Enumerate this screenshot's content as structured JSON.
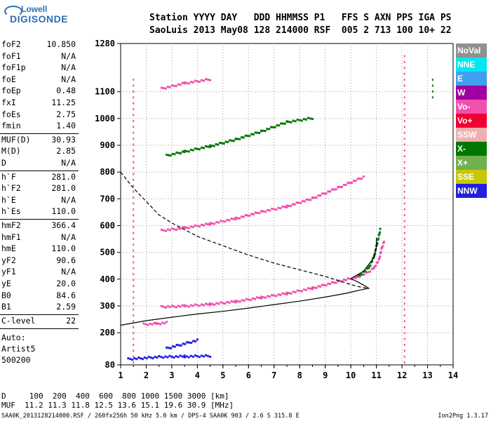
{
  "logo": {
    "top": "Lowell",
    "bottom": "DIGISONDE"
  },
  "header": {
    "line1": "Station YYYY DAY   DDD HHMMSS P1   FFS S AXN PPS IGA PS",
    "line2": "SaoLuis 2013 May08 128 214000 RSF  005 2 713 100 10+ 22"
  },
  "params": [
    {
      "label": "foF2",
      "value": "10.850"
    },
    {
      "label": "foF1",
      "value": "N/A"
    },
    {
      "label": "foF1p",
      "value": "N/A"
    },
    {
      "label": "foE",
      "value": "N/A"
    },
    {
      "label": "foEp",
      "value": "0.48"
    },
    {
      "label": "fxI",
      "value": "11.25"
    },
    {
      "label": "foEs",
      "value": "2.75"
    },
    {
      "label": "fmin",
      "value": "1.40"
    },
    {
      "label": "MUF(D)",
      "value": "30.93"
    },
    {
      "label": "M(D)",
      "value": "2.85"
    },
    {
      "label": "D",
      "value": "N/A"
    },
    {
      "label": "h`F",
      "value": "281.0"
    },
    {
      "label": "h`F2",
      "value": "281.0"
    },
    {
      "label": "h`E",
      "value": "N/A"
    },
    {
      "label": "h`Es",
      "value": "110.0"
    },
    {
      "label": "hmF2",
      "value": "366.4"
    },
    {
      "label": "hmF1",
      "value": "N/A"
    },
    {
      "label": "hmE",
      "value": "110.0"
    },
    {
      "label": "yF2",
      "value": "90.6"
    },
    {
      "label": "yF1",
      "value": "N/A"
    },
    {
      "label": "yE",
      "value": "20.0"
    },
    {
      "label": "B0",
      "value": "84.6"
    },
    {
      "label": "B1",
      "value": "2.59"
    },
    {
      "label": "C-level",
      "value": "22"
    }
  ],
  "auto": [
    "Auto:",
    "Artist5",
    "500200"
  ],
  "legend": [
    {
      "label": "NoVal",
      "color": "#909090"
    },
    {
      "label": "NNE",
      "color": "#00e8f0"
    },
    {
      "label": "E",
      "color": "#3ea0f0"
    },
    {
      "label": "W",
      "color": "#a000a0"
    },
    {
      "label": "Vo-",
      "color": "#f050b0"
    },
    {
      "label": "Vo+",
      "color": "#f00030"
    },
    {
      "label": "SSW",
      "color": "#f0b0b0"
    },
    {
      "label": "X-",
      "color": "#007800"
    },
    {
      "label": "X+",
      "color": "#70b050"
    },
    {
      "label": "SSE",
      "color": "#c8c800"
    },
    {
      "label": "NNW",
      "color": "#2020e0"
    }
  ],
  "footer": {
    "d_line": "D     100  200  400  600  800 1000 1500 3000 [km]",
    "muf_line": "MUF  11.2 11.3 11.8 12.5 13.6 15.1 19.6 30.9 [MHz]",
    "file_line": "SAA0K_2013128214000.RSF / 260fx256h 50 kHz 5.0 km / DPS-4 SAA0K 903 / 2.6 S 315.8 E",
    "version": "Ion2Png 1.3.17"
  },
  "chart_data": {
    "type": "scatter",
    "xlim": [
      1,
      14
    ],
    "ylim": [
      80,
      1280
    ],
    "x_ticks": [
      1,
      2,
      3,
      4,
      5,
      6,
      7,
      8,
      9,
      10,
      11,
      12,
      13,
      14
    ],
    "y_ticks": [
      80,
      200,
      300,
      400,
      500,
      600,
      700,
      800,
      900,
      1000,
      1100,
      1280
    ],
    "grid": true,
    "series": [
      {
        "color": "#f050b0",
        "kind": "trace",
        "points": [
          [
            2.6,
            295
          ],
          [
            3.5,
            298
          ],
          [
            4.5,
            305
          ],
          [
            5.5,
            315
          ],
          [
            6.5,
            330
          ],
          [
            7.5,
            345
          ],
          [
            8.5,
            365
          ],
          [
            9.5,
            390
          ],
          [
            10.2,
            405
          ]
        ]
      },
      {
        "color": "#f050b0",
        "kind": "trace",
        "points": [
          [
            10.2,
            405
          ],
          [
            10.6,
            420
          ],
          [
            10.9,
            440
          ],
          [
            11.1,
            470
          ],
          [
            11.2,
            510
          ],
          [
            11.3,
            540
          ]
        ]
      },
      {
        "color": "#007800",
        "kind": "trace",
        "points": [
          [
            10.3,
            410
          ],
          [
            10.7,
            440
          ],
          [
            10.9,
            480
          ],
          [
            11.0,
            520
          ],
          [
            11.1,
            560
          ],
          [
            11.15,
            585
          ]
        ]
      },
      {
        "color": "#f050b0",
        "kind": "trace",
        "points": [
          [
            2.6,
            580
          ],
          [
            3.5,
            590
          ],
          [
            4.5,
            605
          ],
          [
            5.5,
            625
          ],
          [
            6.5,
            650
          ],
          [
            7.5,
            670
          ],
          [
            8.5,
            700
          ],
          [
            9.5,
            740
          ],
          [
            10.5,
            780
          ]
        ]
      },
      {
        "color": "#007800",
        "kind": "trace",
        "points": [
          [
            2.8,
            860
          ],
          [
            3.5,
            875
          ],
          [
            4.5,
            895
          ],
          [
            5.5,
            920
          ],
          [
            6.5,
            950
          ],
          [
            7.5,
            985
          ],
          [
            8.5,
            1000
          ]
        ]
      },
      {
        "color": "#f050b0",
        "kind": "trace",
        "points": [
          [
            2.6,
            1110
          ],
          [
            3.5,
            1130
          ],
          [
            4.5,
            1145
          ]
        ]
      },
      {
        "color": "#f050b0",
        "kind": "trace",
        "points": [
          [
            1.9,
            230
          ],
          [
            2.4,
            232
          ],
          [
            2.8,
            236
          ]
        ]
      },
      {
        "color": "#2020e0",
        "kind": "trace",
        "points": [
          [
            1.3,
            100
          ],
          [
            2.5,
            108
          ],
          [
            3.5,
            110
          ],
          [
            4.5,
            112
          ]
        ]
      },
      {
        "color": "#2020e0",
        "kind": "trace",
        "points": [
          [
            2.8,
            140
          ],
          [
            3.2,
            150
          ],
          [
            3.6,
            160
          ],
          [
            4.0,
            170
          ]
        ]
      },
      {
        "color": "#f050b0",
        "kind": "vline",
        "points": [
          [
            1.5,
            90
          ],
          [
            1.5,
            1160
          ]
        ]
      },
      {
        "color": "#f050b0",
        "kind": "vline",
        "points": [
          [
            12.1,
            90
          ],
          [
            12.1,
            1240
          ]
        ]
      },
      {
        "color": "#007800",
        "kind": "vline",
        "points": [
          [
            13.2,
            1080
          ],
          [
            13.2,
            1150
          ]
        ]
      }
    ],
    "profile_solid": [
      [
        1.0,
        228
      ],
      [
        2.0,
        245
      ],
      [
        3.0,
        258
      ],
      [
        4.0,
        270
      ],
      [
        5.0,
        280
      ],
      [
        6.0,
        292
      ],
      [
        7.0,
        305
      ],
      [
        8.0,
        318
      ],
      [
        9.0,
        333
      ],
      [
        9.8,
        347
      ],
      [
        10.4,
        360
      ],
      [
        10.7,
        366
      ],
      [
        10.5,
        378
      ],
      [
        10.2,
        393
      ],
      [
        10.0,
        402
      ]
    ],
    "profile_solid2": [
      [
        10.0,
        402
      ],
      [
        10.5,
        430
      ],
      [
        10.9,
        480
      ],
      [
        11.0,
        520
      ],
      [
        11.0,
        555
      ]
    ],
    "profile_dashed": [
      [
        1.0,
        800
      ],
      [
        1.5,
        740
      ],
      [
        2.0,
        690
      ],
      [
        2.5,
        640
      ],
      [
        3.0,
        610
      ],
      [
        4.0,
        560
      ],
      [
        5.0,
        525
      ],
      [
        6.0,
        490
      ],
      [
        7.0,
        460
      ],
      [
        8.0,
        435
      ],
      [
        9.0,
        410
      ],
      [
        10.0,
        380
      ],
      [
        10.4,
        370
      ],
      [
        10.7,
        366
      ]
    ]
  }
}
